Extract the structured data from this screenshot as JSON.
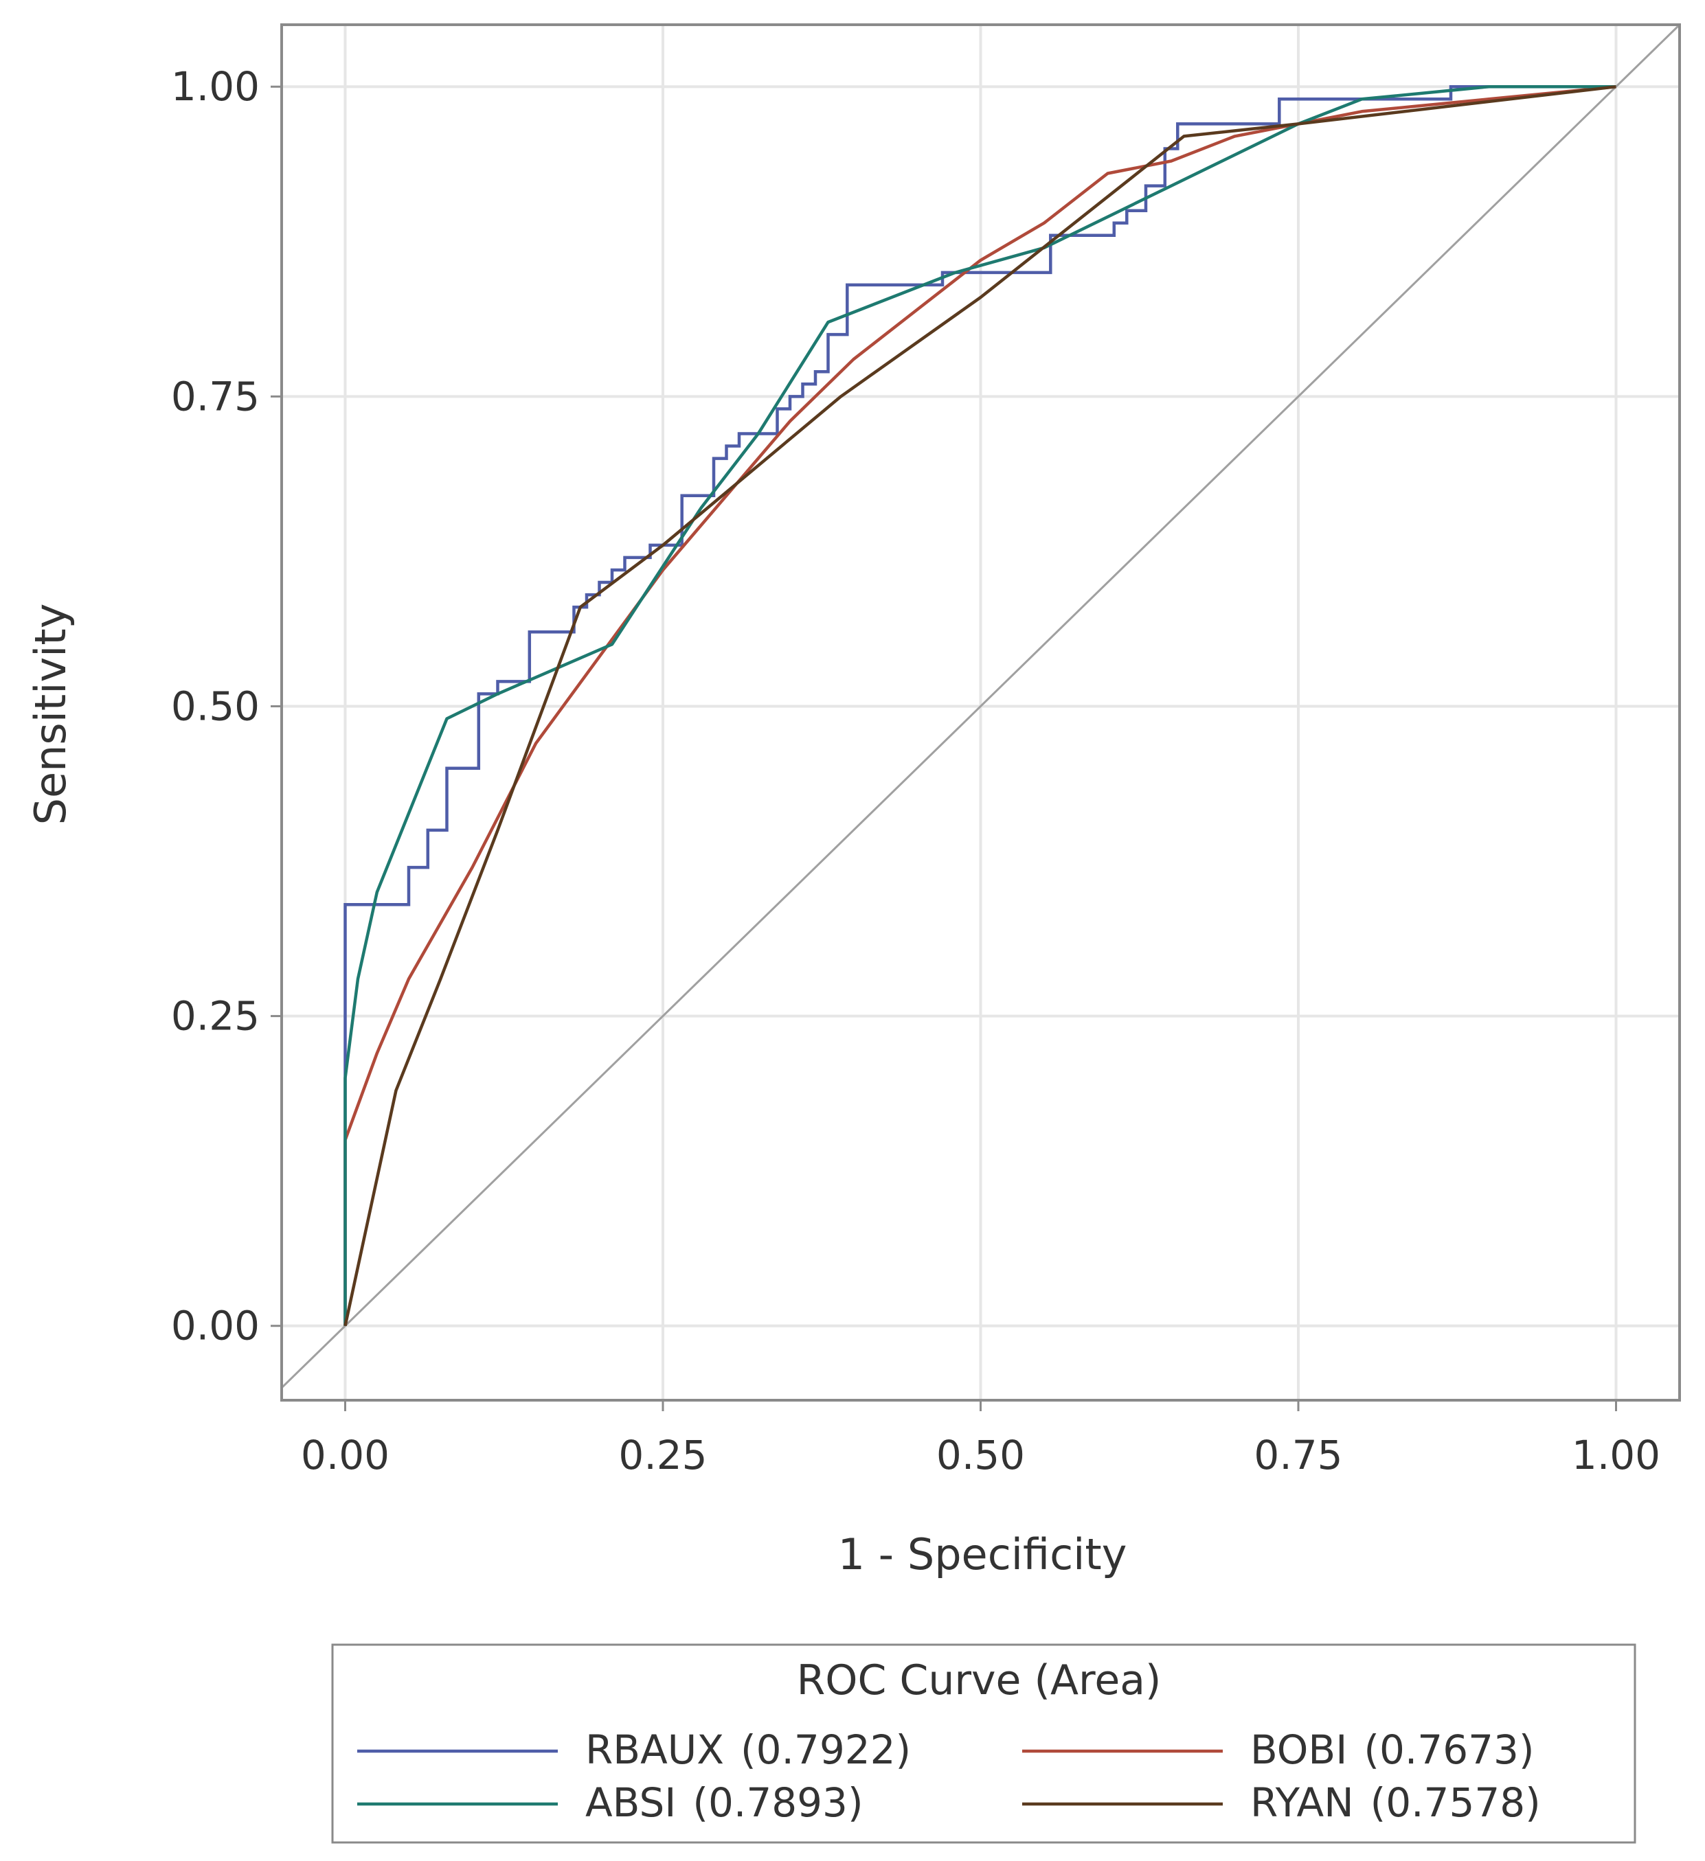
{
  "chart_data": {
    "type": "line",
    "title": "",
    "xlabel": "1 - Specificity",
    "ylabel": "Sensitivity",
    "xlim": [
      -0.05,
      1.05
    ],
    "ylim": [
      -0.06,
      1.05
    ],
    "x_ticks": [
      "0.00",
      "0.25",
      "0.50",
      "0.75",
      "1.00"
    ],
    "y_ticks": [
      "0.00",
      "0.25",
      "0.50",
      "0.75",
      "1.00"
    ],
    "grid": true,
    "legend_title": "ROC Curve (Area)",
    "legend_position": "bottom",
    "reference_line": {
      "x": [
        0,
        1
      ],
      "y": [
        0,
        1
      ],
      "color": "#a0a0a0"
    },
    "series": [
      {
        "name": "RBAUX",
        "area": "(0.7922)",
        "color": "#4f5da8",
        "step": true,
        "points": [
          [
            0,
            0
          ],
          [
            0,
            0.34
          ],
          [
            0.05,
            0.34
          ],
          [
            0.05,
            0.37
          ],
          [
            0.065,
            0.37
          ],
          [
            0.065,
            0.4
          ],
          [
            0.08,
            0.4
          ],
          [
            0.08,
            0.45
          ],
          [
            0.105,
            0.45
          ],
          [
            0.105,
            0.51
          ],
          [
            0.12,
            0.51
          ],
          [
            0.12,
            0.52
          ],
          [
            0.145,
            0.52
          ],
          [
            0.145,
            0.56
          ],
          [
            0.18,
            0.56
          ],
          [
            0.18,
            0.58
          ],
          [
            0.19,
            0.58
          ],
          [
            0.19,
            0.59
          ],
          [
            0.2,
            0.59
          ],
          [
            0.2,
            0.6
          ],
          [
            0.21,
            0.6
          ],
          [
            0.21,
            0.61
          ],
          [
            0.22,
            0.61
          ],
          [
            0.22,
            0.62
          ],
          [
            0.24,
            0.62
          ],
          [
            0.24,
            0.63
          ],
          [
            0.265,
            0.63
          ],
          [
            0.265,
            0.67
          ],
          [
            0.29,
            0.67
          ],
          [
            0.29,
            0.7
          ],
          [
            0.3,
            0.7
          ],
          [
            0.3,
            0.71
          ],
          [
            0.31,
            0.71
          ],
          [
            0.31,
            0.72
          ],
          [
            0.34,
            0.72
          ],
          [
            0.34,
            0.74
          ],
          [
            0.35,
            0.74
          ],
          [
            0.35,
            0.75
          ],
          [
            0.36,
            0.75
          ],
          [
            0.36,
            0.76
          ],
          [
            0.37,
            0.76
          ],
          [
            0.37,
            0.77
          ],
          [
            0.38,
            0.77
          ],
          [
            0.38,
            0.8
          ],
          [
            0.395,
            0.8
          ],
          [
            0.395,
            0.84
          ],
          [
            0.47,
            0.84
          ],
          [
            0.47,
            0.85
          ],
          [
            0.555,
            0.85
          ],
          [
            0.555,
            0.88
          ],
          [
            0.605,
            0.88
          ],
          [
            0.605,
            0.89
          ],
          [
            0.615,
            0.89
          ],
          [
            0.615,
            0.9
          ],
          [
            0.63,
            0.9
          ],
          [
            0.63,
            0.92
          ],
          [
            0.645,
            0.92
          ],
          [
            0.645,
            0.95
          ],
          [
            0.655,
            0.95
          ],
          [
            0.655,
            0.97
          ],
          [
            0.735,
            0.97
          ],
          [
            0.735,
            0.99
          ],
          [
            0.87,
            0.99
          ],
          [
            0.87,
            1.0
          ],
          [
            1.0,
            1.0
          ]
        ]
      },
      {
        "name": "BOBI",
        "area": "(0.7673)",
        "color": "#b04a3a",
        "step": false,
        "points": [
          [
            0,
            0
          ],
          [
            0,
            0.15
          ],
          [
            0.025,
            0.22
          ],
          [
            0.05,
            0.28
          ],
          [
            0.1,
            0.37
          ],
          [
            0.15,
            0.47
          ],
          [
            0.2,
            0.54
          ],
          [
            0.25,
            0.61
          ],
          [
            0.3,
            0.67
          ],
          [
            0.35,
            0.73
          ],
          [
            0.4,
            0.78
          ],
          [
            0.45,
            0.82
          ],
          [
            0.5,
            0.86
          ],
          [
            0.55,
            0.89
          ],
          [
            0.6,
            0.93
          ],
          [
            0.65,
            0.94
          ],
          [
            0.7,
            0.96
          ],
          [
            0.75,
            0.97
          ],
          [
            0.8,
            0.98
          ],
          [
            0.9,
            0.99
          ],
          [
            1.0,
            1.0
          ]
        ]
      },
      {
        "name": "ABSI",
        "area": "(0.7893)",
        "color": "#1e7a70",
        "step": false,
        "points": [
          [
            0,
            0
          ],
          [
            0,
            0.2
          ],
          [
            0.01,
            0.28
          ],
          [
            0.025,
            0.35
          ],
          [
            0.08,
            0.49
          ],
          [
            0.12,
            0.51
          ],
          [
            0.21,
            0.55
          ],
          [
            0.28,
            0.66
          ],
          [
            0.325,
            0.72
          ],
          [
            0.38,
            0.81
          ],
          [
            0.48,
            0.85
          ],
          [
            0.55,
            0.87
          ],
          [
            0.65,
            0.92
          ],
          [
            0.75,
            0.97
          ],
          [
            0.8,
            0.99
          ],
          [
            0.9,
            1.0
          ],
          [
            1.0,
            1.0
          ]
        ]
      },
      {
        "name": "RYAN",
        "area": "(0.7578)",
        "color": "#5a3a1e",
        "step": false,
        "points": [
          [
            0,
            0
          ],
          [
            0.04,
            0.19
          ],
          [
            0.075,
            0.28
          ],
          [
            0.12,
            0.4
          ],
          [
            0.185,
            0.58
          ],
          [
            0.25,
            0.63
          ],
          [
            0.39,
            0.75
          ],
          [
            0.5,
            0.83
          ],
          [
            0.66,
            0.96
          ],
          [
            0.75,
            0.97
          ],
          [
            1.0,
            1.0
          ]
        ]
      }
    ]
  }
}
